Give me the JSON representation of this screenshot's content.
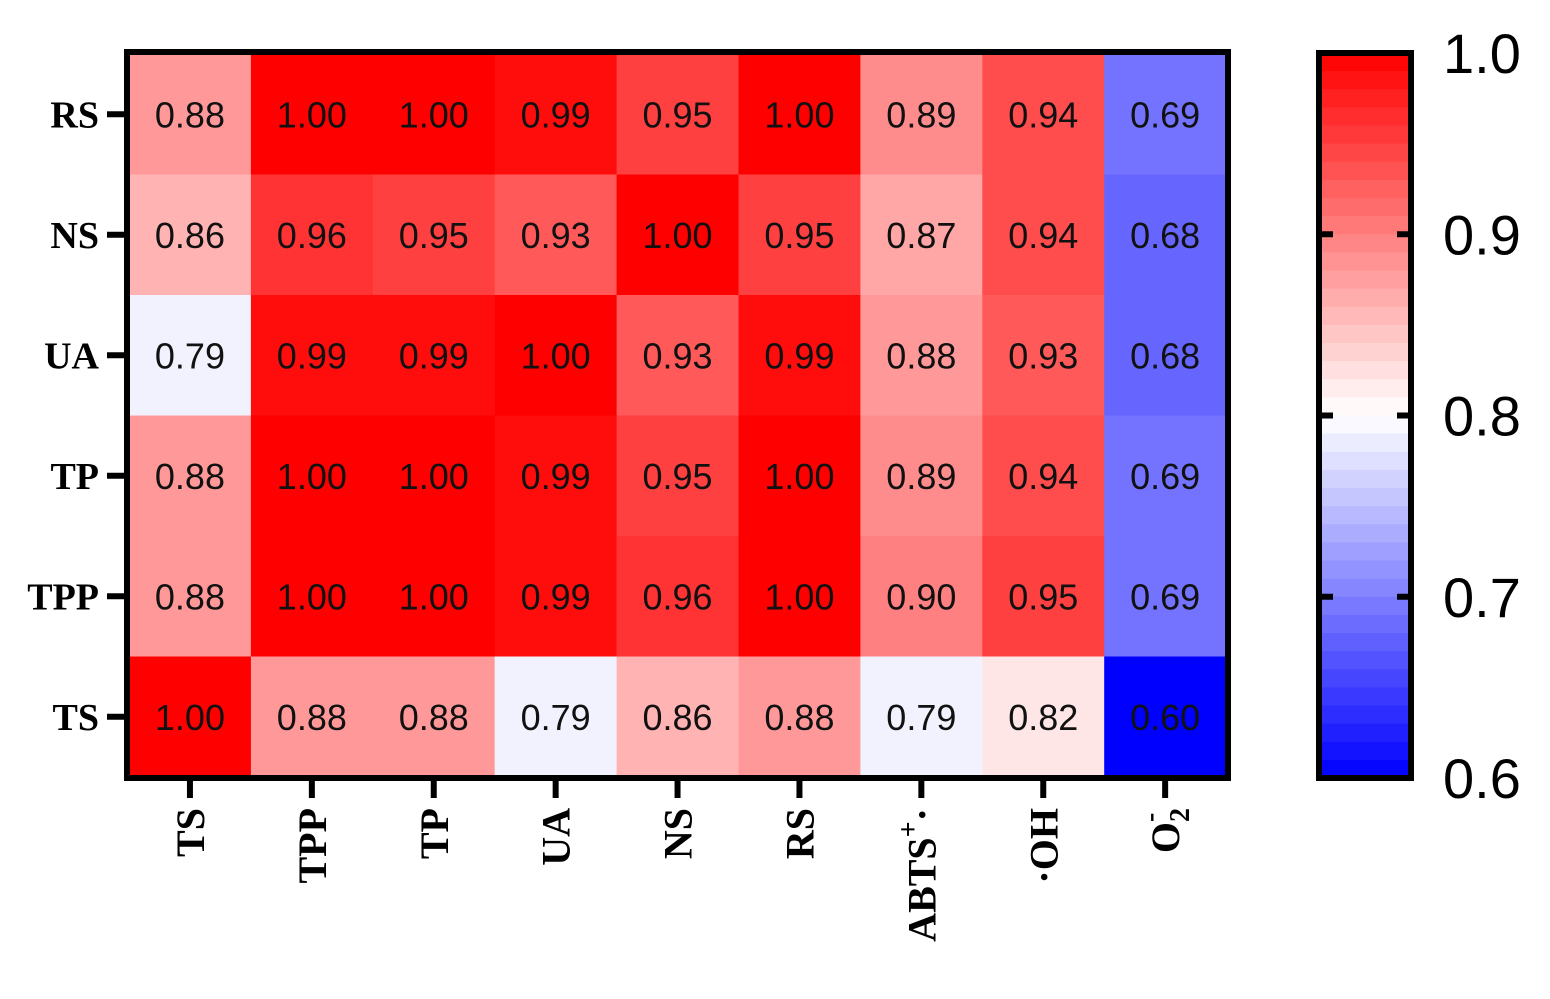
{
  "chart_data": {
    "type": "heatmap",
    "rows": [
      "RS",
      "NS",
      "UA",
      "TP",
      "TPP",
      "TS"
    ],
    "columns": [
      "TS",
      "TPP",
      "TP",
      "UA",
      "NS",
      "RS",
      "ABTS⁺·",
      "·OH",
      "O₂⁻"
    ],
    "columns_display": [
      {
        "base": "TS",
        "sup": "",
        "sub": ""
      },
      {
        "base": "TPP",
        "sup": "",
        "sub": ""
      },
      {
        "base": "TP",
        "sup": "",
        "sub": ""
      },
      {
        "base": "UA",
        "sup": "",
        "sub": ""
      },
      {
        "base": "NS",
        "sup": "",
        "sub": ""
      },
      {
        "base": "RS",
        "sup": "",
        "sub": ""
      },
      {
        "base": "ABTS",
        "sup": "+",
        "tail": "·",
        "sub": ""
      },
      {
        "base": "·OH",
        "sup": "",
        "sub": ""
      },
      {
        "base": "O",
        "sup": "-",
        "sub": "2"
      }
    ],
    "values": [
      [
        0.88,
        1.0,
        1.0,
        0.99,
        0.95,
        1.0,
        0.89,
        0.94,
        0.69
      ],
      [
        0.86,
        0.96,
        0.95,
        0.93,
        1.0,
        0.95,
        0.87,
        0.94,
        0.68
      ],
      [
        0.79,
        0.99,
        0.99,
        1.0,
        0.93,
        0.99,
        0.88,
        0.93,
        0.68
      ],
      [
        0.88,
        1.0,
        1.0,
        0.99,
        0.95,
        1.0,
        0.89,
        0.94,
        0.69
      ],
      [
        0.88,
        1.0,
        1.0,
        0.99,
        0.96,
        1.0,
        0.9,
        0.95,
        0.69
      ],
      [
        1.0,
        0.88,
        0.88,
        0.79,
        0.86,
        0.88,
        0.79,
        0.82,
        0.6
      ]
    ],
    "value_labels": [
      [
        "0.88",
        "1.00",
        "1.00",
        "0.99",
        "0.95",
        "1.00",
        "0.89",
        "0.94",
        "0.69"
      ],
      [
        "0.86",
        "0.96",
        "0.95",
        "0.93",
        "1.00",
        "0.95",
        "0.87",
        "0.94",
        "0.68"
      ],
      [
        "0.79",
        "0.99",
        "0.99",
        "1.00",
        "0.93",
        "0.99",
        "0.88",
        "0.93",
        "0.68"
      ],
      [
        "0.88",
        "1.00",
        "1.00",
        "0.99",
        "0.95",
        "1.00",
        "0.89",
        "0.94",
        "0.69"
      ],
      [
        "0.88",
        "1.00",
        "1.00",
        "0.99",
        "0.96",
        "1.00",
        "0.90",
        "0.95",
        "0.69"
      ],
      [
        "1.00",
        "0.88",
        "0.88",
        "0.79",
        "0.86",
        "0.88",
        "0.79",
        "0.82",
        "0.60"
      ]
    ],
    "colorbar": {
      "min": 0.6,
      "max": 1.0,
      "center": 0.8,
      "ticks": [
        1.0,
        0.9,
        0.8,
        0.7,
        0.6
      ],
      "tick_labels": [
        "1.0",
        "0.9",
        "0.8",
        "0.7",
        "0.6"
      ],
      "color_low": "#0000ff",
      "color_mid": "#ffffff",
      "color_high": "#ff0000",
      "placement": "right"
    },
    "title": "",
    "xlabel": "",
    "ylabel": ""
  }
}
